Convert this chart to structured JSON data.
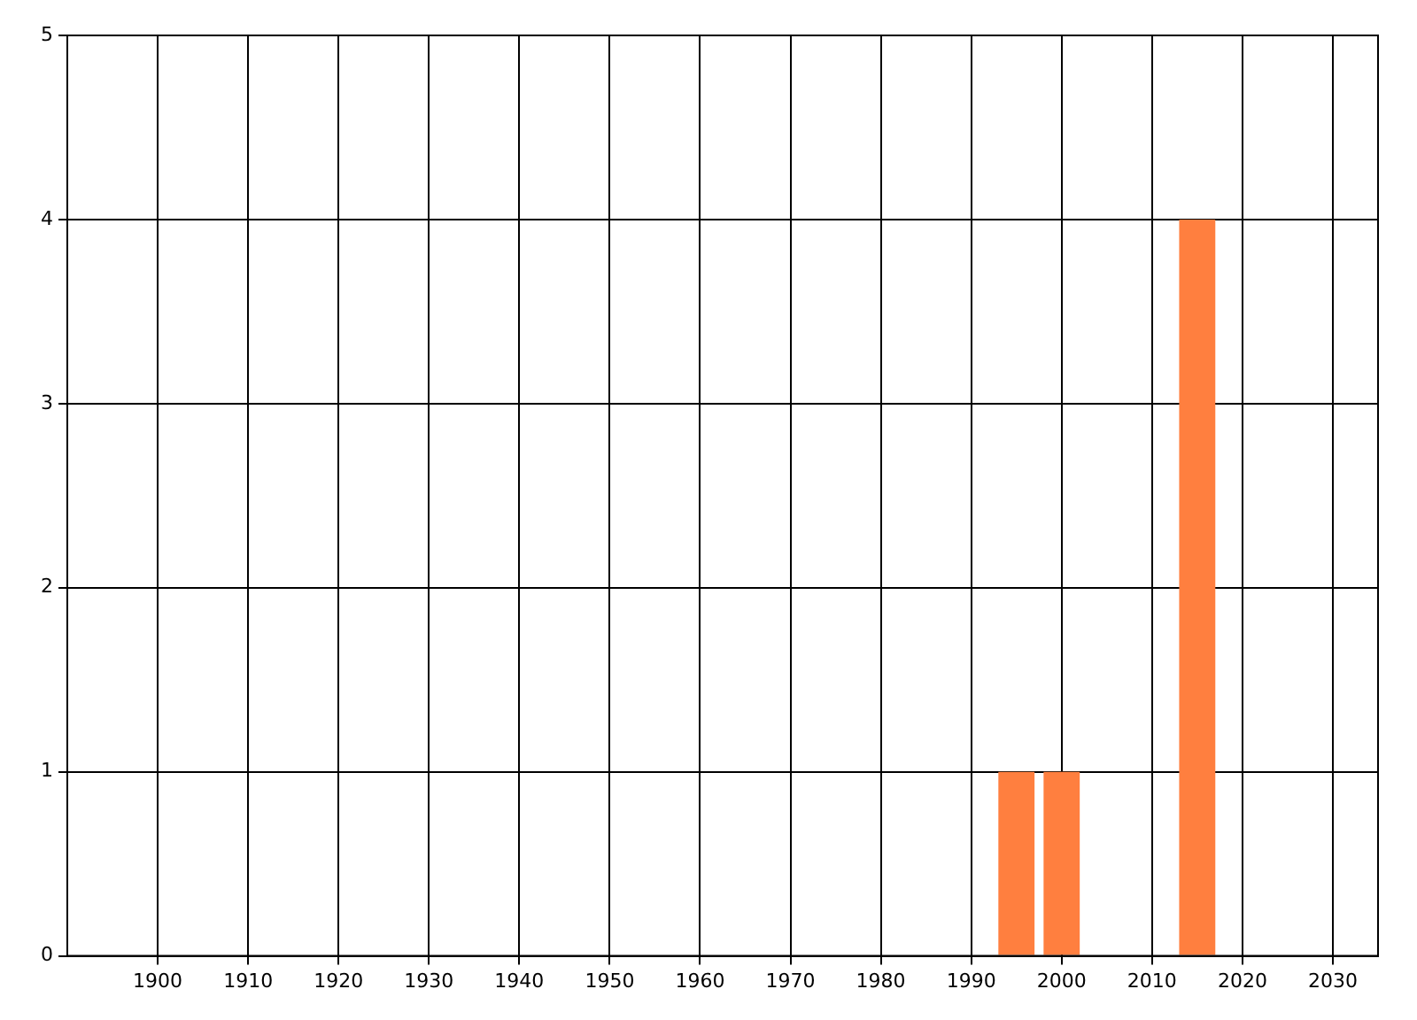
{
  "chart_data": {
    "type": "bar",
    "x": [
      1995,
      2000,
      2015
    ],
    "values": [
      1,
      1,
      4
    ],
    "color": "#ff7f3f",
    "xlim": [
      1890,
      2035
    ],
    "xticks": [
      1900,
      1910,
      1920,
      1930,
      1940,
      1950,
      1960,
      1970,
      1980,
      1990,
      2000,
      2010,
      2020,
      2030
    ],
    "ylim": [
      0,
      5
    ],
    "yticks": [
      0,
      1,
      2,
      3,
      4,
      5
    ],
    "grid": true,
    "legend": false
  }
}
